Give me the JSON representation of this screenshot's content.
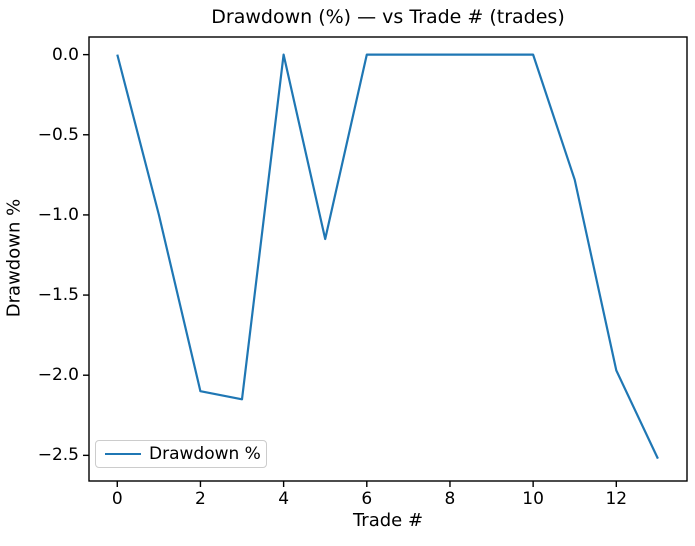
{
  "figure": {
    "background": "#ffffff"
  },
  "chart_data": {
    "type": "line",
    "title": "Drawdown (%) — vs Trade # (trades)",
    "xlabel": "Trade #",
    "ylabel": "Drawdown %",
    "grid": false,
    "x": [
      0,
      1,
      2,
      3,
      4,
      5,
      6,
      7,
      8,
      9,
      10,
      11,
      12,
      13
    ],
    "series": [
      {
        "name": "Drawdown %",
        "color": "#1f77b4",
        "values": [
          0.0,
          -1.0,
          -2.1,
          -2.15,
          0.0,
          -1.15,
          0.0,
          0.0,
          0.0,
          0.0,
          0.0,
          -0.78,
          -1.97,
          -2.52
        ]
      }
    ],
    "xlim": [
      -0.68,
      13.7
    ],
    "ylim": [
      -2.66,
      0.11
    ],
    "xticks": [
      0,
      2,
      4,
      6,
      8,
      10,
      12
    ],
    "xtick_labels": [
      "0",
      "2",
      "4",
      "6",
      "8",
      "10",
      "12"
    ],
    "yticks": [
      0.0,
      -0.5,
      -1.0,
      -1.5,
      -2.0,
      -2.5
    ],
    "ytick_labels": [
      "0.0",
      "−0.5",
      "−1.0",
      "−1.5",
      "−2.0",
      "−2.5"
    ],
    "legend": {
      "position": "lower left",
      "entries": [
        "Drawdown %"
      ]
    }
  }
}
